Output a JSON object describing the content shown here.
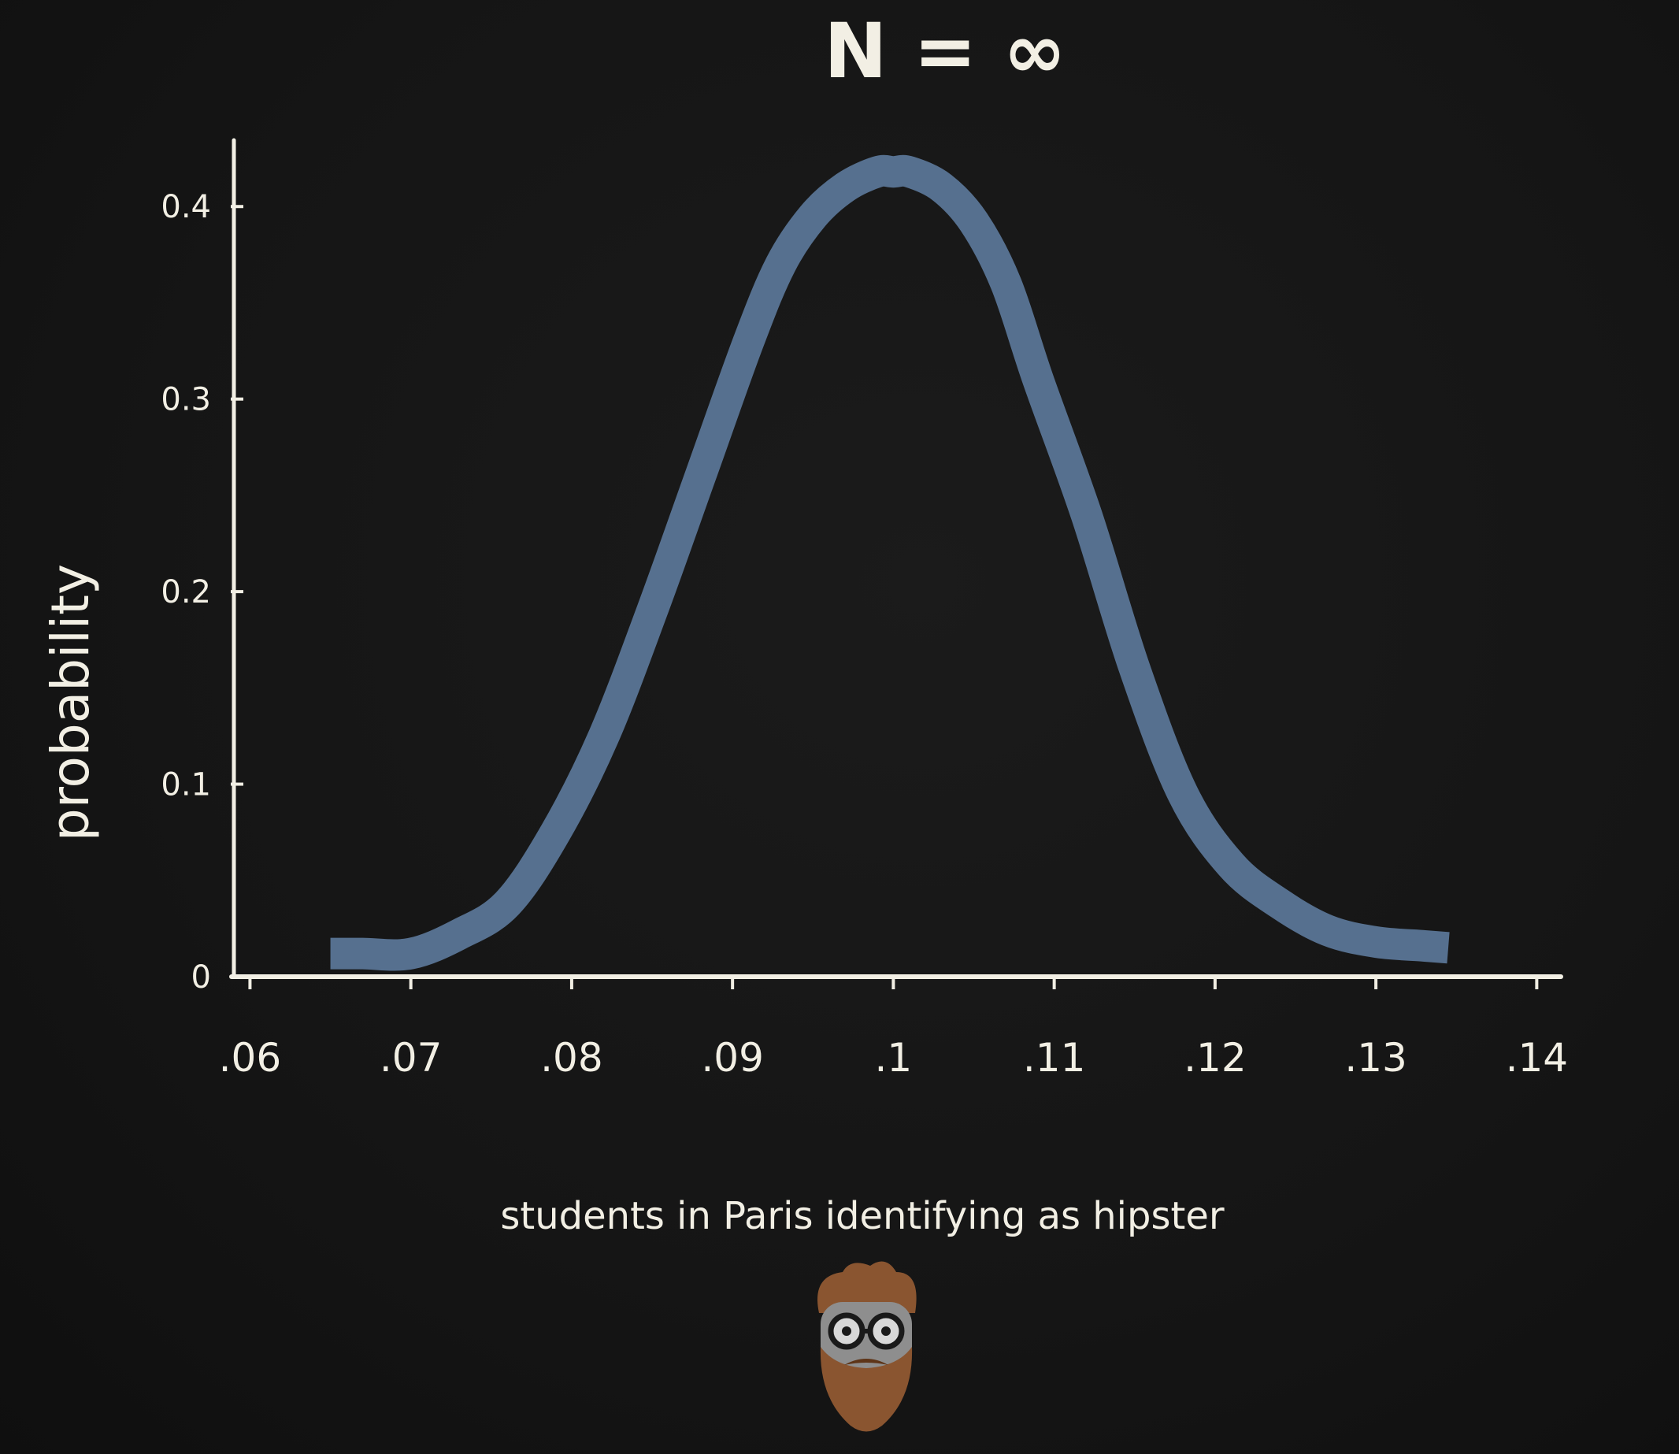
{
  "chart_data": {
    "type": "line",
    "title": "N = ∞",
    "xlabel": "students in Paris identifying as hipster",
    "ylabel": "probability",
    "x_tick_labels": [
      ".06",
      ".07",
      ".08",
      ".09",
      ".1",
      ".11",
      ".12",
      ".13",
      ".14"
    ],
    "x_ticks": [
      0.06,
      0.07,
      0.08,
      0.09,
      0.1,
      0.11,
      0.12,
      0.13,
      0.14
    ],
    "y_tick_labels": [
      "0",
      "0.1",
      "0.2",
      "0.3",
      "0.4"
    ],
    "y_ticks": [
      0,
      0.1,
      0.2,
      0.3,
      0.4
    ],
    "xlim": [
      0.059,
      0.1415
    ],
    "ylim": [
      0,
      0.45
    ],
    "grid": false,
    "series": [
      {
        "color": "#56708f",
        "x": [
          0.065,
          0.067,
          0.07,
          0.073,
          0.076,
          0.079,
          0.082,
          0.085,
          0.088,
          0.091,
          0.093,
          0.095,
          0.097,
          0.099,
          0.1,
          0.101,
          0.103,
          0.105,
          0.107,
          0.109,
          0.112,
          0.115,
          0.118,
          0.121,
          0.124,
          0.127,
          0.13,
          0.133,
          0.1345
        ],
        "y": [
          0.012,
          0.012,
          0.012,
          0.022,
          0.038,
          0.075,
          0.125,
          0.19,
          0.26,
          0.33,
          0.37,
          0.395,
          0.41,
          0.418,
          0.418,
          0.418,
          0.41,
          0.392,
          0.36,
          0.31,
          0.24,
          0.16,
          0.095,
          0.058,
          0.038,
          0.024,
          0.018,
          0.016,
          0.015
        ]
      }
    ]
  },
  "colors": {
    "background": "#151515",
    "chalk": "#f2efe4",
    "curve": "#56708f",
    "mascot_hair": "#8a5530",
    "mascot_face": "#8e8e8e"
  },
  "mascot": {
    "icon": "bearded-hipster-mascot-icon"
  }
}
